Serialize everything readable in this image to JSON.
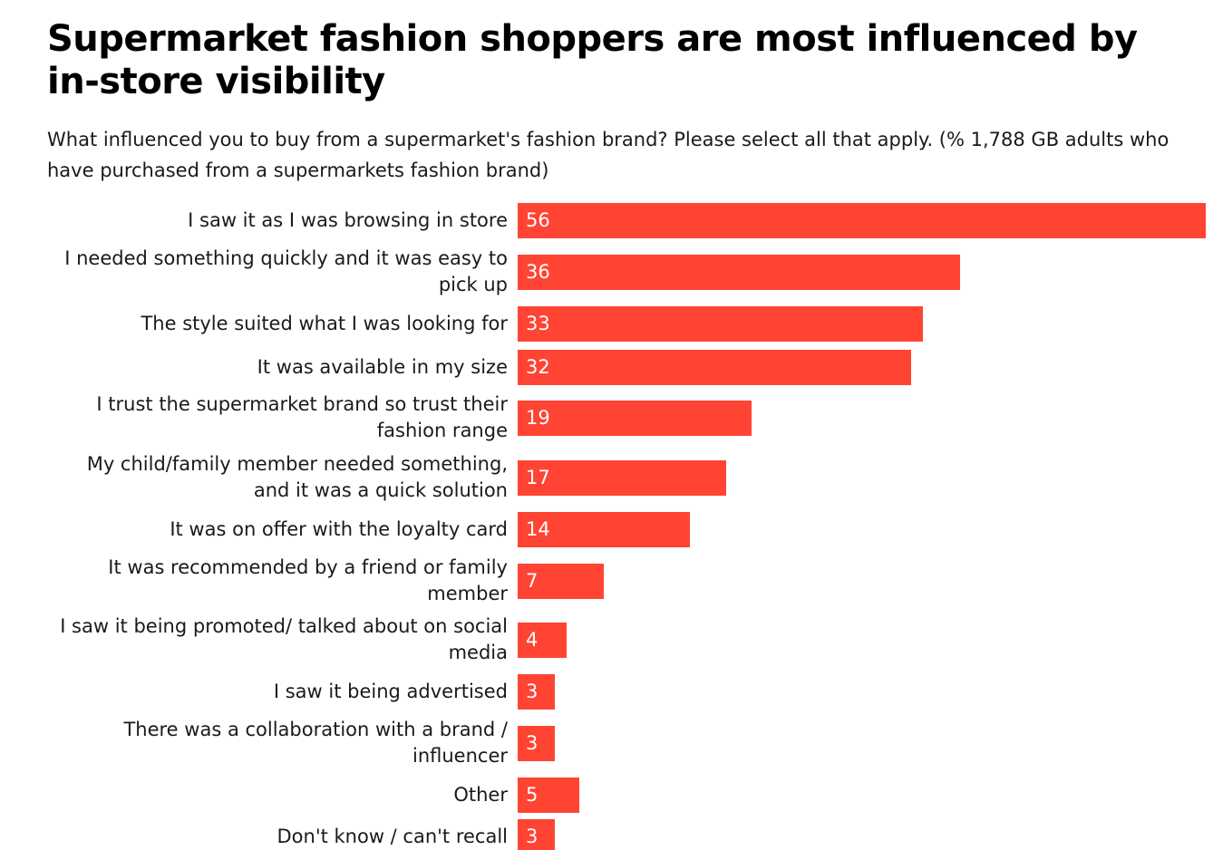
{
  "title": "Supermarket fashion shoppers are most influenced by in-store visibility",
  "subtitle": "What influenced you to buy from a supermarket's fashion brand? Please select all that apply. (% 1,788 GB adults who have purchased from a supermarkets fashion brand)",
  "colors": {
    "bar": "#ff4433",
    "bar_label": "#ffffff",
    "text": "#1a1a1a"
  },
  "chart_data": {
    "type": "bar",
    "orientation": "horizontal",
    "title": "Supermarket fashion shoppers are most influenced by in-store visibility",
    "subtitle": "What influenced you to buy from a supermarket's fashion brand? Please select all that apply. (% 1,788 GB adults who have purchased from a supermarkets fashion brand)",
    "xlabel": "",
    "ylabel": "",
    "categories": [
      "I saw it as I was browsing in store",
      "I needed something quickly and it was easy to pick up",
      "The style suited what I was looking for",
      "It was available in my size",
      "I trust the supermarket brand so trust their fashion range",
      "My child/family member needed something, and it was a quick solution",
      "It was on offer with the loyalty card",
      "It was recommended by a friend or family member",
      "I saw it being promoted/ talked about on social media",
      "I saw it being advertised",
      "There was a collaboration with a brand / influencer",
      "Other",
      "Don't know / can't recall"
    ],
    "values": [
      56,
      36,
      33,
      32,
      19,
      17,
      14,
      7,
      4,
      3,
      3,
      5,
      3
    ],
    "xlim": [
      0,
      56
    ],
    "grid": false,
    "legend": "none",
    "data_labels": "inside-left"
  }
}
